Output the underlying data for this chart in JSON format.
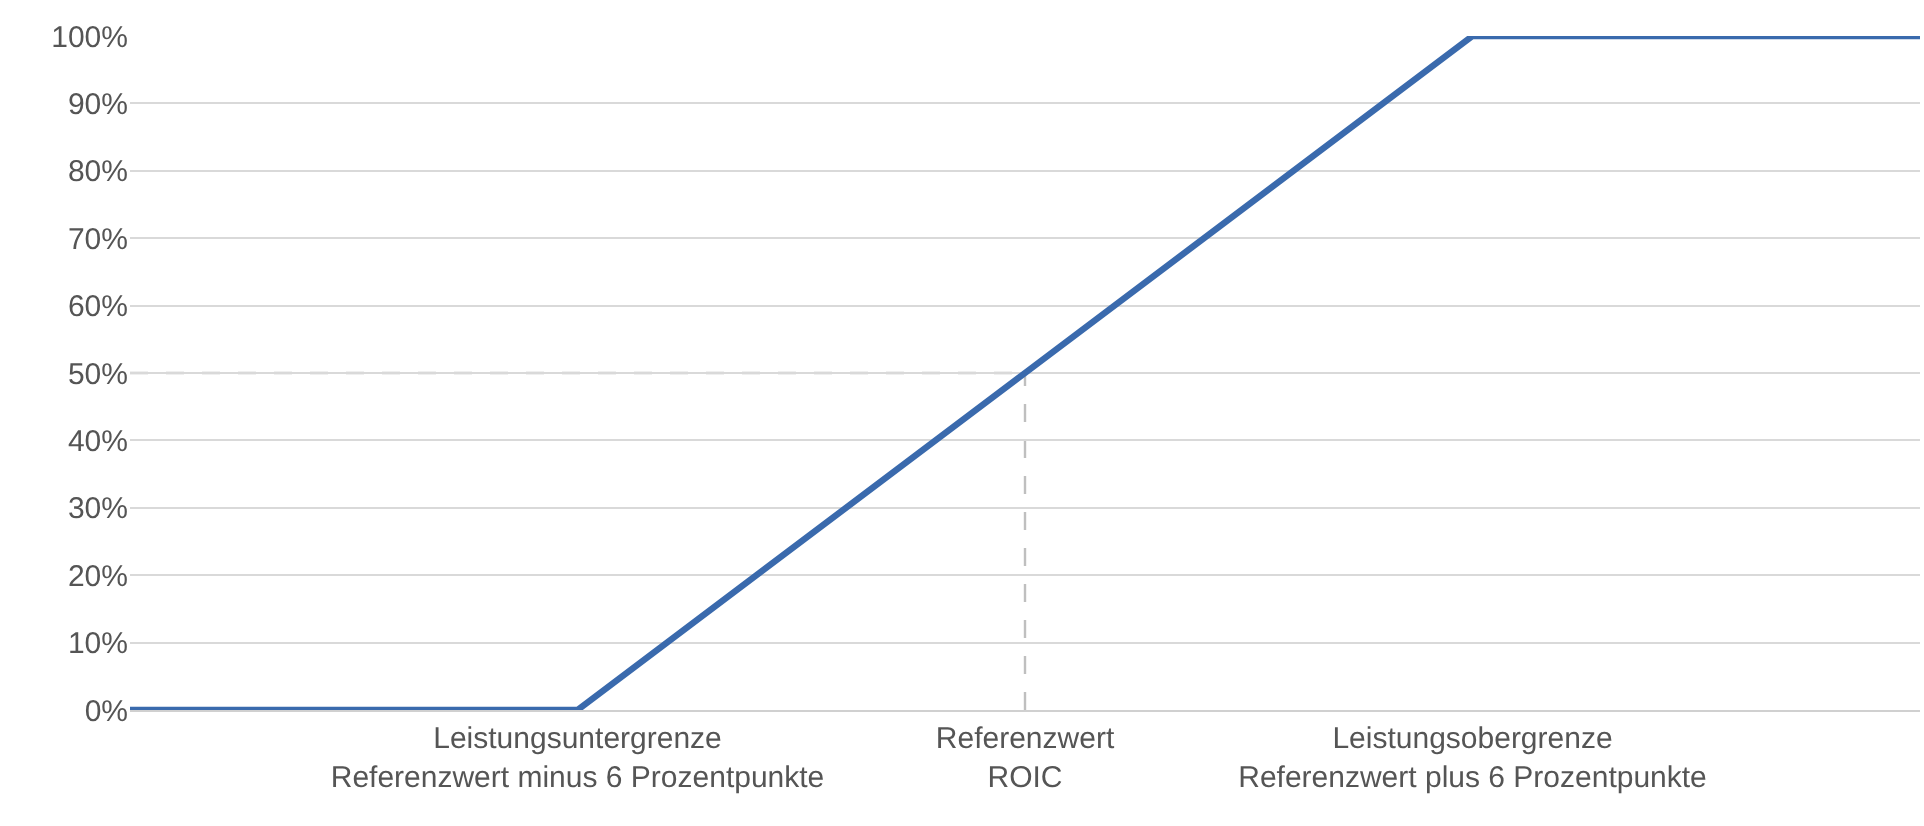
{
  "chart_data": {
    "type": "line",
    "categories": [
      null,
      "Leistungsuntergrenze\nReferenzwert minus 6 Prozentpunkte",
      "Referenzwert\nROIC",
      "Leistungsobergrenze\nReferenzwert plus 6 Prozentpunkte",
      null
    ],
    "series": [
      {
        "color": "#3a6aad",
        "values": [
          0,
          0,
          50,
          100,
          100
        ]
      }
    ],
    "ylim": [
      0,
      100
    ],
    "yticks": [
      {
        "value": 0,
        "label": "0%"
      },
      {
        "value": 10,
        "label": "10%"
      },
      {
        "value": 20,
        "label": "20%"
      },
      {
        "value": 30,
        "label": "30%"
      },
      {
        "value": 40,
        "label": "40%"
      },
      {
        "value": 50,
        "label": "50%"
      },
      {
        "value": 60,
        "label": "60%"
      },
      {
        "value": 70,
        "label": "70%"
      },
      {
        "value": 80,
        "label": "80%"
      },
      {
        "value": 90,
        "label": "90%"
      },
      {
        "value": 100,
        "label": "100%"
      }
    ],
    "ref_lines": [
      {
        "axis": "y",
        "value": 50,
        "color": "#bfbfbf",
        "line_style": "dashed"
      },
      {
        "axis": "x",
        "value": "Referenzwert\nROIC",
        "color": "#bfbfbf",
        "line_style": "dashed"
      }
    ],
    "grid": "y",
    "marker": "none",
    "line_style": "solid"
  }
}
